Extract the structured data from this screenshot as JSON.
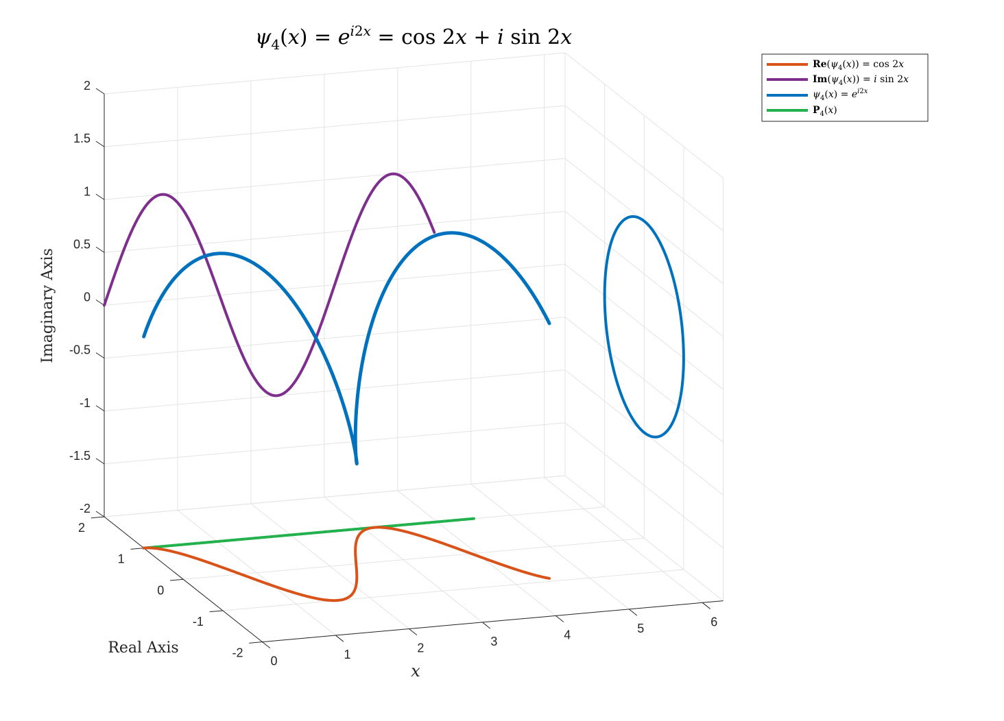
{
  "chart_data": {
    "type": "line3d",
    "title": "ψ₄(x) = e^{i2x} = cos 2x + i sin 2x",
    "xlabel": "x",
    "ylabel": "Real Axis",
    "zlabel": "Imaginary Axis",
    "x_ticks": [
      "0",
      "1",
      "2",
      "3",
      "4",
      "5",
      "6"
    ],
    "y_ticks": [
      "-2",
      "-1",
      "0",
      "1",
      "2"
    ],
    "z_ticks": [
      "-2",
      "-1.5",
      "-1",
      "-0.5",
      "0",
      "0.5",
      "1",
      "1.5",
      "2"
    ],
    "xlim": [
      0,
      6.2832
    ],
    "ylim": [
      -2,
      2
    ],
    "zlim": [
      -2,
      2
    ],
    "grid": true,
    "legend_placement": "top-right outside",
    "series": [
      {
        "name": "Re(ψ₄(x)) = cos 2x",
        "function": "real part cos(2x), plotted on the Real Axis at Imaginary = -2",
        "x_range": [
          0,
          4.5
        ],
        "color": "#D95319"
      },
      {
        "name": "Im(ψ₄(x)) = i sin 2x",
        "function": "imaginary part sin(2x), plotted on the Imaginary Axis at Real = 2",
        "x_range": [
          0,
          4.5
        ],
        "color": "#7E2F8E"
      },
      {
        "name": "ψ₄(x) = e^{i2x}",
        "function": "helix (x, cos 2x, sin 2x) plus its projection onto the x = 2π plane (circle)",
        "x_range": [
          0,
          4.5
        ],
        "color": "#0072BD"
      },
      {
        "name": "P₄(x)",
        "function": "line at Real = 1, Imaginary = -2",
        "x_range": [
          0,
          4.5
        ],
        "color": "#22B14C"
      }
    ],
    "colors": {
      "real": "#D95319",
      "imag": "#7E2F8E",
      "psi": "#0072BD",
      "p": "#22B14C",
      "grid": "#e3e3e3",
      "axis": "#262626"
    }
  }
}
